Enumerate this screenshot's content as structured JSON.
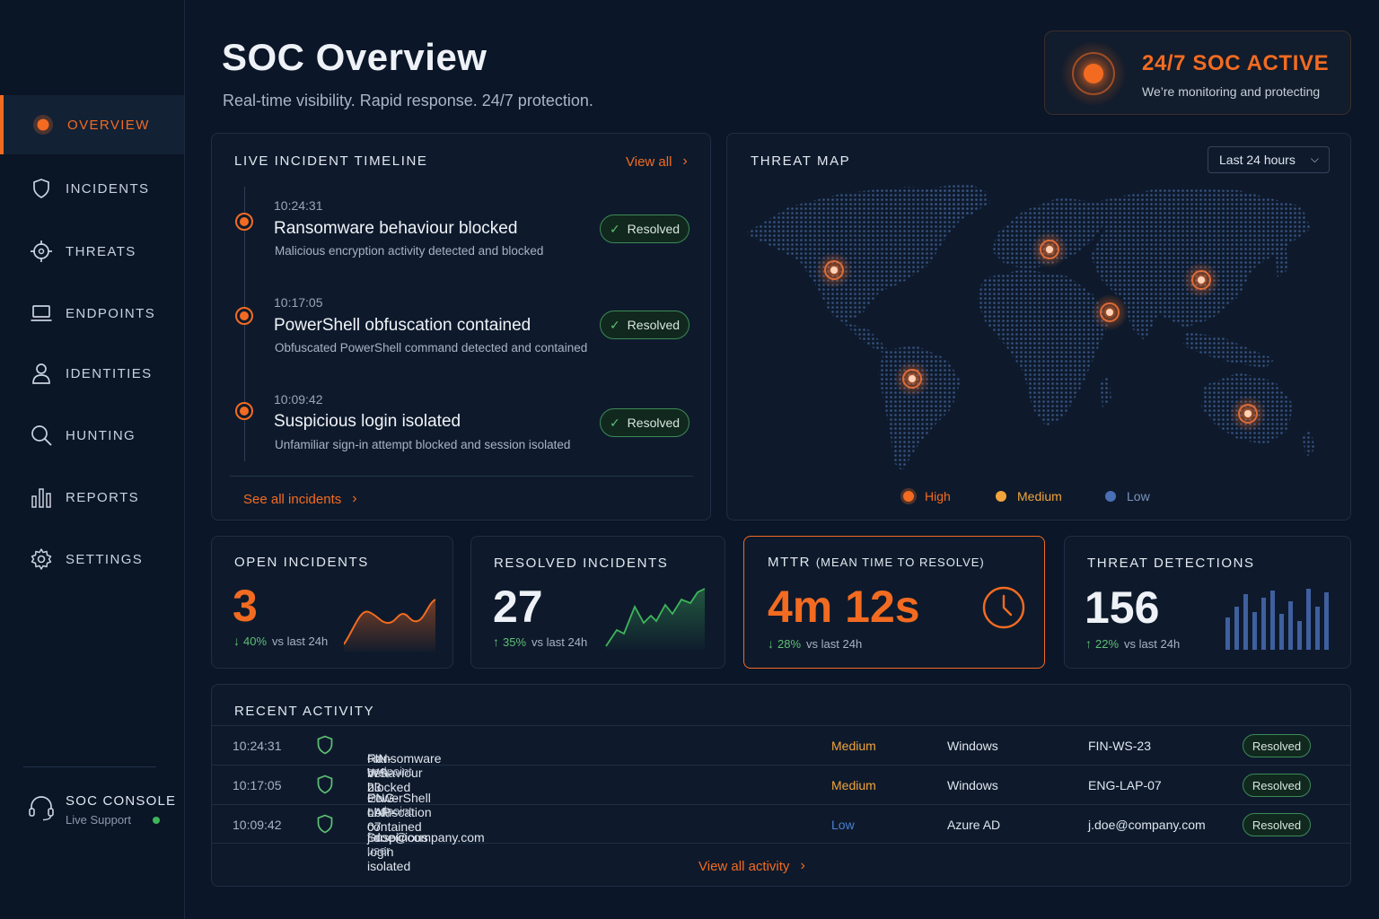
{
  "sidebar": {
    "items": [
      {
        "label": "OVERVIEW",
        "icon": "target-dot-icon",
        "active": true
      },
      {
        "label": "INCIDENTS",
        "icon": "shield-icon"
      },
      {
        "label": "THREATS",
        "icon": "crosshair-icon"
      },
      {
        "label": "ENDPOINTS",
        "icon": "laptop-icon"
      },
      {
        "label": "IDENTITIES",
        "icon": "user-icon"
      },
      {
        "label": "HUNTING",
        "icon": "search-icon"
      },
      {
        "label": "REPORTS",
        "icon": "bar-chart-icon"
      },
      {
        "label": "SETTINGS",
        "icon": "gear-icon"
      }
    ],
    "console": {
      "title": "SOC CONSOLE",
      "subtitle": "Live Support",
      "icon": "headset-icon"
    }
  },
  "header": {
    "title": "SOC Overview",
    "subtitle": "Real-time visibility. Rapid response. 24/7 protection."
  },
  "status_banner": {
    "title": "24/7 SOC ACTIVE",
    "subtitle": "We’re monitoring and protecting"
  },
  "timeline": {
    "title": "LIVE INCIDENT TIMELINE",
    "view_all": "View all",
    "see_all": "See all incidents",
    "items": [
      {
        "time": "10:24:31",
        "title": "Ransomware behaviour blocked",
        "desc": "Malicious encryption activity detected and blocked",
        "status": "Resolved"
      },
      {
        "time": "10:17:05",
        "title": "PowerShell obfuscation contained",
        "desc": "Obfuscated PowerShell command detected and contained",
        "status": "Resolved"
      },
      {
        "time": "10:09:42",
        "title": "Suspicious login isolated",
        "desc": "Unfamiliar sign-in attempt blocked and session isolated",
        "status": "Resolved"
      }
    ]
  },
  "threat_map": {
    "title": "THREAT MAP",
    "range": "Last 24 hours",
    "legend": [
      {
        "label": "High",
        "color": "#f26b21"
      },
      {
        "label": "Medium",
        "color": "#f0a43a"
      },
      {
        "label": "Low",
        "color": "#4a6fb5"
      }
    ]
  },
  "kpis": {
    "open": {
      "title": "OPEN INCIDENTS",
      "value": "3",
      "pct": "40%",
      "vs": "vs last 24h",
      "direction": "down"
    },
    "resolved": {
      "title": "RESOLVED INCIDENTS",
      "value": "27",
      "pct": "35%",
      "vs": "vs last 24h",
      "direction": "up"
    },
    "mttr": {
      "title": "MTTR",
      "title_suffix": "(MEAN TIME TO RESOLVE)",
      "value": "4m 12s",
      "pct": "28%",
      "vs": "vs last 24h",
      "direction": "down"
    },
    "detections": {
      "title": "THREAT DETECTIONS",
      "value": "156",
      "pct": "22%",
      "vs": "vs last 24h",
      "direction": "up"
    }
  },
  "activity": {
    "title": "RECENT ACTIVITY",
    "view_all": "View all activity",
    "rows": [
      {
        "time": "10:24:31",
        "event": "Ransomware behaviour blocked",
        "joiner": "on endpoint",
        "target": "FIN-WS-23",
        "severity": "Medium",
        "platform": "Windows",
        "asset": "FIN-WS-23",
        "status": "Resolved"
      },
      {
        "time": "10:17:05",
        "event": "PowerShell obfuscation contained",
        "joiner": "on endpoint",
        "target": "ENG-LAP-07",
        "severity": "Medium",
        "platform": "Windows",
        "asset": "ENG-LAP-07",
        "status": "Resolved"
      },
      {
        "time": "10:09:42",
        "event": "Suspicious login isolated",
        "joiner": "for user",
        "target": "j.doe@company.com",
        "severity": "Low",
        "platform": "Azure AD",
        "asset": "j.doe@company.com",
        "status": "Resolved"
      }
    ]
  },
  "colors": {
    "accent": "#f26b21",
    "success": "#5fbf74",
    "medium": "#f0a43a",
    "low": "#4a6fb5",
    "background": "#0b1628"
  }
}
